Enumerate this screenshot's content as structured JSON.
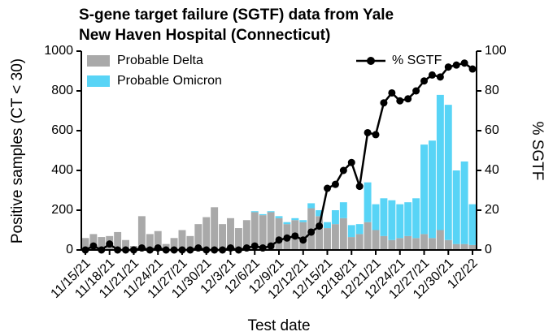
{
  "chart_data": {
    "type": "bar",
    "stacked": true,
    "title": "S-gene target failure (SGTF) data from Yale New Haven Hospital (Connecticut)",
    "x_label": "Test date",
    "y_label": "Positive samples (CT < 30)",
    "y2_label": "% SGTF",
    "categories": [
      "11/15/21",
      null,
      null,
      "11/18/21",
      null,
      null,
      "11/21/21",
      null,
      null,
      "11/24/21",
      null,
      null,
      "11/27/21",
      null,
      null,
      "11/30/21",
      null,
      null,
      "12/3/21",
      null,
      null,
      "12/6/21",
      null,
      null,
      "12/9/21",
      null,
      null,
      "12/12/21",
      null,
      null,
      "12/15/21",
      null,
      null,
      "12/18/21",
      null,
      null,
      "12/21/21",
      null,
      null,
      "12/24/21",
      null,
      null,
      "12/27/21",
      null,
      null,
      "12/30/21",
      null,
      null,
      "1/2/22"
    ],
    "series": [
      {
        "name": "Probable Delta",
        "type": "bar",
        "color": "#a9a9a9",
        "values": [
          60,
          80,
          65,
          70,
          90,
          50,
          20,
          170,
          80,
          95,
          30,
          60,
          100,
          70,
          130,
          165,
          215,
          130,
          160,
          110,
          150,
          190,
          175,
          190,
          160,
          130,
          150,
          140,
          210,
          170,
          110,
          130,
          160,
          65,
          80,
          140,
          100,
          70,
          50,
          60,
          70,
          60,
          80,
          60,
          100,
          50,
          30,
          30,
          25
        ]
      },
      {
        "name": "Probable Omicron",
        "type": "bar",
        "color": "#58d4f6",
        "values": [
          0,
          0,
          0,
          0,
          0,
          0,
          0,
          0,
          0,
          0,
          0,
          0,
          0,
          0,
          0,
          0,
          0,
          0,
          0,
          0,
          0,
          5,
          5,
          5,
          10,
          10,
          10,
          10,
          25,
          30,
          30,
          70,
          80,
          60,
          50,
          200,
          130,
          190,
          200,
          170,
          170,
          200,
          450,
          490,
          680,
          680,
          370,
          415,
          205
        ]
      },
      {
        "name": "% SGTF",
        "type": "line",
        "color": "#000000",
        "axis": "y2",
        "values": [
          0,
          2,
          0,
          3,
          0,
          0,
          0,
          1,
          0,
          1,
          0,
          0,
          0,
          0,
          1,
          0,
          0,
          0,
          1,
          0,
          1,
          2,
          1,
          2,
          5,
          6,
          7,
          5,
          9,
          12,
          31,
          33,
          40,
          44,
          32,
          59,
          58,
          74,
          79,
          75,
          76,
          80,
          85,
          88,
          87,
          92,
          93,
          94,
          91
        ]
      }
    ],
    "ylim": [
      0,
      1000
    ],
    "yticks": [
      0,
      200,
      400,
      600,
      800,
      1000
    ],
    "y2lim": [
      0,
      100
    ],
    "y2ticks": [
      0,
      20,
      40,
      60,
      80,
      100
    ],
    "grid": false
  }
}
